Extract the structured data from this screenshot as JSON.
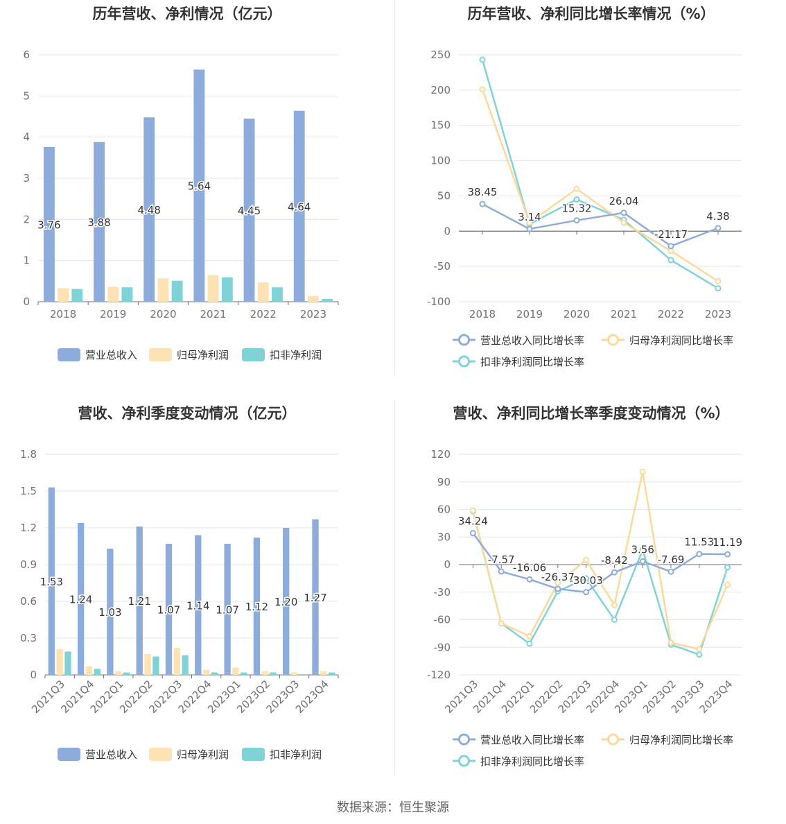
{
  "footer": {
    "source": "数据来源：恒生聚源"
  },
  "chart_data": [
    {
      "id": "annual_amounts",
      "type": "bar",
      "title": "历年营收、净利情况（亿元）",
      "categories": [
        "2018",
        "2019",
        "2020",
        "2021",
        "2022",
        "2023"
      ],
      "ylim": [
        0,
        6
      ],
      "yticks": [
        0,
        1,
        2,
        3,
        4,
        5,
        6
      ],
      "grid": true,
      "legend_position": "bottom",
      "series": [
        {
          "name": "营业总收入",
          "color": "#8eacdb",
          "values": [
            3.76,
            3.88,
            4.48,
            5.64,
            4.45,
            4.64
          ],
          "labels": [
            "3.76",
            "3.88",
            "4.48",
            "5.64",
            "4.45",
            "4.64"
          ]
        },
        {
          "name": "归母净利润",
          "color": "#fde2b4",
          "values": [
            0.33,
            0.36,
            0.57,
            0.65,
            0.47,
            0.14
          ]
        },
        {
          "name": "扣非净利润",
          "color": "#7fd3d6",
          "values": [
            0.31,
            0.35,
            0.51,
            0.59,
            0.35,
            0.07
          ]
        }
      ]
    },
    {
      "id": "annual_growth",
      "type": "line",
      "title": "历年营收、净利同比增长率情况（%）",
      "categories": [
        "2018",
        "2019",
        "2020",
        "2021",
        "2022",
        "2023"
      ],
      "ylim": [
        -100,
        250
      ],
      "yticks": [
        -100,
        -50,
        0,
        50,
        100,
        150,
        200,
        250
      ],
      "grid": true,
      "legend_position": "bottom",
      "series": [
        {
          "name": "营业总收入同比增长率",
          "color": "#8eacdb",
          "values": [
            38.45,
            3.14,
            15.32,
            26.04,
            -21.17,
            4.38
          ],
          "labels": [
            "38.45",
            "3.14",
            "15.32",
            "26.04",
            "-21.17",
            "4.38"
          ]
        },
        {
          "name": "归母净利润同比增长率",
          "color": "#fcd99a",
          "values": [
            201,
            12,
            60,
            12,
            -28,
            -71
          ]
        },
        {
          "name": "扣非净利润同比增长率",
          "color": "#7fd3d6",
          "values": [
            243,
            10,
            45,
            16,
            -41,
            -81
          ]
        }
      ]
    },
    {
      "id": "quarterly_amounts",
      "type": "bar",
      "title": "营收、净利季度变动情况（亿元）",
      "categories": [
        "2021Q3",
        "2021Q4",
        "2022Q1",
        "2022Q2",
        "2022Q3",
        "2022Q4",
        "2023Q1",
        "2023Q2",
        "2023Q3",
        "2023Q4"
      ],
      "ylim": [
        0,
        1.8
      ],
      "yticks": [
        0,
        0.3,
        0.6,
        0.9,
        1.2,
        1.5,
        1.8
      ],
      "ytick_labels": [
        "0",
        "0.3",
        "0.6",
        "0.9",
        "1.2",
        "1.5",
        "1.8"
      ],
      "grid": true,
      "legend_position": "bottom",
      "series": [
        {
          "name": "营业总收入",
          "color": "#8eacdb",
          "values": [
            1.53,
            1.24,
            1.03,
            1.21,
            1.07,
            1.14,
            1.07,
            1.12,
            1.2,
            1.27
          ],
          "labels": [
            "1.53",
            "1.24",
            "1.03",
            "1.21",
            "1.07",
            "1.14",
            "1.07",
            "1.12",
            "1.20",
            "1.27"
          ]
        },
        {
          "name": "归母净利润",
          "color": "#fde2b4",
          "values": [
            0.21,
            0.07,
            0.03,
            0.17,
            0.22,
            0.04,
            0.06,
            0.03,
            0.02,
            0.03
          ]
        },
        {
          "name": "扣非净利润",
          "color": "#7fd3d6",
          "values": [
            0.19,
            0.05,
            0.02,
            0.15,
            0.16,
            0.02,
            0.02,
            0.02,
            0.0,
            0.02
          ]
        }
      ]
    },
    {
      "id": "quarterly_growth",
      "type": "line",
      "title": "营收、净利同比增长率季度变动情况（%）",
      "categories": [
        "2021Q3",
        "2021Q4",
        "2022Q1",
        "2022Q2",
        "2022Q3",
        "2022Q4",
        "2023Q1",
        "2023Q2",
        "2023Q3",
        "2023Q4"
      ],
      "ylim": [
        -120,
        120
      ],
      "yticks": [
        -120,
        -90,
        -60,
        -30,
        0,
        30,
        60,
        90,
        120
      ],
      "grid": true,
      "legend_position": "bottom",
      "series": [
        {
          "name": "营业总收入同比增长率",
          "color": "#8eacdb",
          "values": [
            34.24,
            -7.57,
            -16.06,
            -26.37,
            -30.03,
            -8.42,
            3.56,
            -7.69,
            11.53,
            11.19
          ],
          "labels": [
            "34.24",
            "-7.57",
            "-16.06",
            "-26.37",
            "-30.03",
            "-8.42",
            "3.56",
            "-7.69",
            "11.53",
            "11.19"
          ]
        },
        {
          "name": "归母净利润同比增长率",
          "color": "#fcd99a",
          "values": [
            59,
            -64,
            -78,
            -20,
            5,
            -44,
            101,
            -85,
            -92,
            -22
          ]
        },
        {
          "name": "扣非净利润同比增长率",
          "color": "#7fd3d6",
          "values": [
            58,
            -64,
            -86,
            -29,
            -15,
            -60,
            16,
            -87,
            -98,
            -3
          ]
        }
      ]
    }
  ]
}
